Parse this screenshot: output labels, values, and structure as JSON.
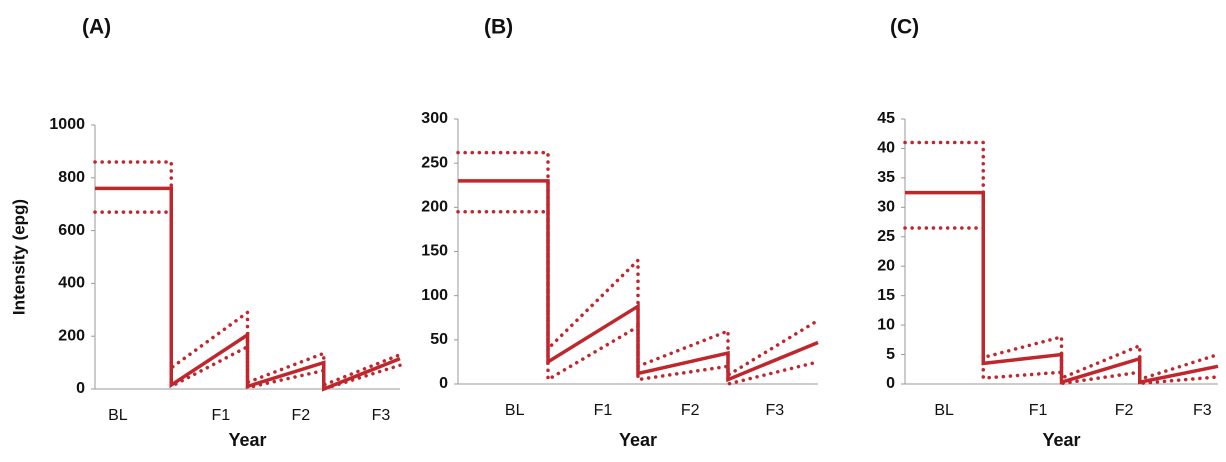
{
  "chart_data": [
    {
      "type": "line",
      "title": "(A)",
      "xlabel": "Year",
      "ylabel": "Intensity (epg)",
      "x": [
        0,
        1,
        1,
        2,
        2,
        3,
        3,
        4
      ],
      "xlim": [
        0,
        4
      ],
      "xticks": [
        {
          "value": 0.3,
          "label": "BL"
        },
        {
          "value": 1.65,
          "label": "F1"
        },
        {
          "value": 2.7,
          "label": "F2"
        },
        {
          "value": 3.75,
          "label": "F3"
        }
      ],
      "ylim": [
        0,
        1000
      ],
      "yticks": [
        0,
        200,
        400,
        600,
        800,
        1000
      ],
      "series": [
        {
          "color": "#c0272d",
          "dotted": false,
          "values": [
            760,
            760,
            15,
            205,
            10,
            100,
            0,
            115
          ]
        },
        {
          "color": "#c0272d",
          "dotted": true,
          "values": [
            860,
            860,
            80,
            290,
            25,
            135,
            15,
            130
          ]
        },
        {
          "color": "#c0272d",
          "dotted": true,
          "values": [
            670,
            670,
            10,
            160,
            5,
            70,
            0,
            90
          ]
        }
      ]
    },
    {
      "type": "line",
      "title": "(B)",
      "xlabel": "Year",
      "x": [
        0,
        1,
        1,
        2,
        2,
        3,
        3,
        4
      ],
      "xlim": [
        0,
        4
      ],
      "xticks": [
        {
          "value": 0.63,
          "label": "BL"
        },
        {
          "value": 1.61,
          "label": "F1"
        },
        {
          "value": 2.58,
          "label": "F2"
        },
        {
          "value": 3.52,
          "label": "F3"
        }
      ],
      "ylim": [
        0,
        300
      ],
      "yticks": [
        0,
        50,
        100,
        150,
        200,
        250,
        300
      ],
      "series": [
        {
          "color": "#c0272d",
          "dotted": false,
          "values": [
            230,
            230,
            25,
            88,
            12,
            35,
            5,
            47
          ]
        },
        {
          "color": "#c0272d",
          "dotted": true,
          "values": [
            262,
            262,
            40,
            140,
            20,
            60,
            10,
            72
          ]
        },
        {
          "color": "#c0272d",
          "dotted": true,
          "values": [
            195,
            195,
            5,
            65,
            5,
            20,
            0,
            25
          ]
        }
      ]
    },
    {
      "type": "line",
      "title": "(C)",
      "xlabel": "Year",
      "x": [
        0,
        1,
        1,
        2,
        2,
        3,
        3,
        4
      ],
      "xlim": [
        0,
        4
      ],
      "xticks": [
        {
          "value": 0.5,
          "label": "BL"
        },
        {
          "value": 1.7,
          "label": "F1"
        },
        {
          "value": 2.8,
          "label": "F2"
        },
        {
          "value": 3.8,
          "label": "F3"
        }
      ],
      "ylim": [
        0,
        45
      ],
      "yticks": [
        0,
        5,
        10,
        15,
        20,
        25,
        30,
        35,
        40,
        45
      ],
      "series": [
        {
          "color": "#c0272d",
          "dotted": false,
          "values": [
            32.5,
            32.5,
            3.5,
            5,
            0.3,
            4.3,
            0.3,
            3
          ]
        },
        {
          "color": "#c0272d",
          "dotted": true,
          "values": [
            41,
            41,
            4.5,
            8,
            1,
            6.5,
            0.8,
            5
          ]
        },
        {
          "color": "#c0272d",
          "dotted": true,
          "values": [
            26.5,
            26.5,
            1,
            2,
            0.1,
            2,
            0.1,
            1.2
          ]
        }
      ]
    }
  ]
}
